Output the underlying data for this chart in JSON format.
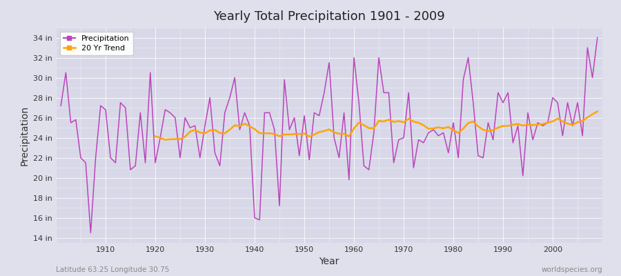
{
  "title": "Yearly Total Precipitation 1901 - 2009",
  "xlabel": "Year",
  "ylabel": "Precipitation",
  "subtitle_left": "Latitude 63.25 Longitude 30.75",
  "subtitle_right": "worldspecies.org",
  "precip_color": "#BB44BB",
  "trend_color": "#FFA500",
  "background_color": "#E0E0EC",
  "plot_bg_color": "#D8D8E8",
  "ylim": [
    13.5,
    35
  ],
  "yticks": [
    14,
    16,
    18,
    20,
    22,
    24,
    26,
    28,
    30,
    32,
    34
  ],
  "xlim": [
    1900,
    2010
  ],
  "xticks": [
    1910,
    1920,
    1930,
    1940,
    1950,
    1960,
    1970,
    1980,
    1990,
    2000
  ],
  "years": [
    1901,
    1902,
    1903,
    1904,
    1905,
    1906,
    1907,
    1908,
    1909,
    1910,
    1911,
    1912,
    1913,
    1914,
    1915,
    1916,
    1917,
    1918,
    1919,
    1920,
    1921,
    1922,
    1923,
    1924,
    1925,
    1926,
    1927,
    1928,
    1929,
    1930,
    1931,
    1932,
    1933,
    1934,
    1935,
    1936,
    1937,
    1938,
    1939,
    1940,
    1941,
    1942,
    1943,
    1944,
    1945,
    1946,
    1947,
    1948,
    1949,
    1950,
    1951,
    1952,
    1953,
    1954,
    1955,
    1956,
    1957,
    1958,
    1959,
    1960,
    1961,
    1962,
    1963,
    1964,
    1965,
    1966,
    1967,
    1968,
    1969,
    1970,
    1971,
    1972,
    1973,
    1974,
    1975,
    1976,
    1977,
    1978,
    1979,
    1980,
    1981,
    1982,
    1983,
    1984,
    1985,
    1986,
    1987,
    1988,
    1989,
    1990,
    1991,
    1992,
    1993,
    1994,
    1995,
    1996,
    1997,
    1998,
    1999,
    2000,
    2001,
    2002,
    2003,
    2004,
    2005,
    2006,
    2007,
    2008,
    2009
  ],
  "precip": [
    27.2,
    30.5,
    25.5,
    25.8,
    22.0,
    21.5,
    14.5,
    22.0,
    27.2,
    26.8,
    22.0,
    21.5,
    27.5,
    27.0,
    20.8,
    21.2,
    26.5,
    21.5,
    30.5,
    21.5,
    24.0,
    26.8,
    26.5,
    26.0,
    22.0,
    26.0,
    25.0,
    25.2,
    22.0,
    25.2,
    28.0,
    22.5,
    21.2,
    26.5,
    28.0,
    30.0,
    24.8,
    26.5,
    25.2,
    16.0,
    15.8,
    26.5,
    26.5,
    24.8,
    17.2,
    29.8,
    24.8,
    26.0,
    22.2,
    26.2,
    21.8,
    26.5,
    26.2,
    28.5,
    31.5,
    24.0,
    22.0,
    26.5,
    19.8,
    32.0,
    27.5,
    21.2,
    20.8,
    24.5,
    32.0,
    28.5,
    28.5,
    21.5,
    23.8,
    24.0,
    28.5,
    21.0,
    23.8,
    23.5,
    24.5,
    24.8,
    24.2,
    24.5,
    22.5,
    25.5,
    22.0,
    29.8,
    32.0,
    27.5,
    22.2,
    22.0,
    25.5,
    23.8,
    28.5,
    27.5,
    28.5,
    23.5,
    25.2,
    20.2,
    26.5,
    23.8,
    25.5,
    25.2,
    25.5,
    28.0,
    27.5,
    24.2,
    27.5,
    25.2,
    27.5,
    24.2,
    33.0,
    30.0,
    34.0
  ]
}
